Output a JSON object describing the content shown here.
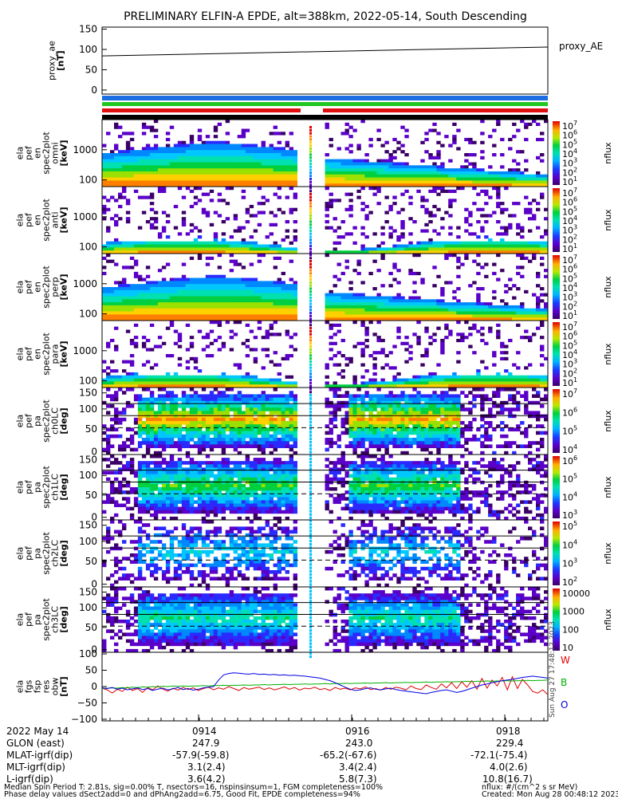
{
  "title": "PRELIMINARY ELFIN-A EPDE, alt=388km, 2022-05-14, South Descending",
  "colors": {
    "bar_blue": "#1b6fe0",
    "bar_green": "#22c722",
    "bar_red": "#e01010",
    "bar_black": "#000000",
    "trace_red": "#e00000",
    "trace_green": "#00b000",
    "trace_blue": "#0000e0"
  },
  "chart_data": [
    {
      "type": "line",
      "id": "proxy_ae",
      "ylabel_lines": [
        "proxy_ae",
        "[nT]"
      ],
      "legend": "proxy_AE",
      "yticks": [
        "150",
        "100",
        "50",
        "0"
      ],
      "ylim": [
        -10,
        155
      ],
      "x": [
        0,
        1
      ],
      "y": [
        84,
        106
      ]
    },
    {
      "type": "heatmap",
      "id": "en-spec-omni",
      "ylabel_lines": [
        "ela",
        "pef",
        "en",
        "spec2plot",
        "omni",
        "[keV]"
      ],
      "yticks": [
        "1000",
        "100"
      ],
      "colorbar_label": "nflux",
      "colorbar_ticks": [
        "10",
        "10",
        "10",
        "10",
        "10",
        "10",
        "10"
      ],
      "colorbar_exps": [
        "7",
        "6",
        "5",
        "4",
        "3",
        "2",
        "1"
      ]
    },
    {
      "type": "heatmap",
      "id": "en-spec-anti",
      "ylabel_lines": [
        "ela",
        "pef",
        "en",
        "spec2plot",
        "anti",
        "[keV]"
      ],
      "yticks": [
        "1000",
        "100"
      ],
      "colorbar_label": "nflux",
      "colorbar_ticks": [
        "10",
        "10",
        "10",
        "10",
        "10",
        "10",
        "10"
      ],
      "colorbar_exps": [
        "7",
        "6",
        "5",
        "4",
        "3",
        "2",
        "1"
      ]
    },
    {
      "type": "heatmap",
      "id": "en-spec-perp",
      "ylabel_lines": [
        "ela",
        "pef",
        "en",
        "spec2plot",
        "perp",
        "[keV]"
      ],
      "yticks": [
        "1000",
        "100"
      ],
      "colorbar_label": "nflux",
      "colorbar_ticks": [
        "10",
        "10",
        "10",
        "10",
        "10",
        "10",
        "10"
      ],
      "colorbar_exps": [
        "7",
        "6",
        "5",
        "4",
        "3",
        "2",
        "1"
      ]
    },
    {
      "type": "heatmap",
      "id": "en-spec-para",
      "ylabel_lines": [
        "ela",
        "pef",
        "en",
        "spec2plot",
        "para",
        "[keV]"
      ],
      "yticks": [
        "1000",
        "100"
      ],
      "colorbar_label": "nflux",
      "colorbar_ticks": [
        "10",
        "10",
        "10",
        "10",
        "10",
        "10",
        "10"
      ],
      "colorbar_exps": [
        "7",
        "6",
        "5",
        "4",
        "3",
        "2",
        "1"
      ]
    },
    {
      "type": "heatmap",
      "id": "pa-ch0",
      "ylabel_lines": [
        "ela",
        "pef",
        "pa",
        "spec2plot",
        "ch0LC",
        "[deg]"
      ],
      "yticks": [
        "150",
        "100",
        "50",
        "0"
      ],
      "colorbar_label": "nflux",
      "colorbar_ticks": [
        "10",
        "10",
        "10",
        "10"
      ],
      "colorbar_exps": [
        "7",
        "6",
        "5",
        "4"
      ]
    },
    {
      "type": "heatmap",
      "id": "pa-ch1",
      "ylabel_lines": [
        "ela",
        "pef",
        "pa",
        "spec2plot",
        "ch1LC",
        "[deg]"
      ],
      "yticks": [
        "150",
        "100",
        "50",
        "0"
      ],
      "colorbar_label": "nflux",
      "colorbar_ticks": [
        "10",
        "10",
        "10",
        "10"
      ],
      "colorbar_exps": [
        "6",
        "5",
        "4",
        "3"
      ]
    },
    {
      "type": "heatmap",
      "id": "pa-ch2",
      "ylabel_lines": [
        "ela",
        "pef",
        "pa",
        "spec2plot",
        "ch2LC",
        "[deg]"
      ],
      "yticks": [
        "150",
        "100",
        "50",
        "0"
      ],
      "colorbar_label": "nflux",
      "colorbar_ticks": [
        "10",
        "10",
        "10",
        "10"
      ],
      "colorbar_exps": [
        "5",
        "4",
        "3",
        "2"
      ]
    },
    {
      "type": "heatmap",
      "id": "pa-ch3",
      "ylabel_lines": [
        "ela",
        "pef",
        "pa",
        "spec2plot",
        "ch3LC",
        "[deg]"
      ],
      "yticks": [
        "150",
        "100",
        "50",
        "0"
      ],
      "colorbar_label": "nflux",
      "colorbar_ticks": [
        "10000",
        "1000",
        "100",
        "10"
      ],
      "colorbar_exps": [
        "",
        "",
        "",
        ""
      ]
    },
    {
      "type": "line",
      "id": "fgs-res",
      "ylabel_lines": [
        "ela",
        "fgs",
        "fsp",
        "res",
        "obw",
        "[nT]"
      ],
      "yticks": [
        "100",
        "50",
        "0",
        "−50",
        "−100"
      ],
      "ylim": [
        -105,
        105
      ],
      "legend": [
        {
          "name": "W",
          "color": "#e00000"
        },
        {
          "name": "B",
          "color": "#00b000"
        },
        {
          "name": "O",
          "color": "#0000e0"
        }
      ],
      "series": [
        {
          "name": "W",
          "values": [
            -5,
            -10,
            -20,
            -8,
            -15,
            -2,
            -12,
            -6,
            -18,
            -3,
            -10,
            2,
            -8,
            -14,
            -5,
            -11,
            -3,
            -9,
            -4,
            -12,
            -6,
            -2,
            -10,
            -4,
            -8,
            0,
            -6,
            -12,
            -3,
            -8,
            -5,
            -2,
            -9,
            -4,
            -10,
            -6,
            -1,
            -8,
            -3,
            -11,
            -5,
            -7,
            -2,
            -9,
            -6,
            -12,
            -3,
            -8,
            -5,
            -10,
            -4,
            -7,
            -1,
            -9,
            -6,
            -11,
            -3,
            -8,
            -2,
            -5,
            -10,
            2,
            -6,
            -9,
            5,
            -3,
            -8,
            8,
            -4,
            12,
            -6,
            15,
            -2,
            18,
            -8,
            25,
            -5,
            20,
            2,
            28,
            -10,
            30,
            -6,
            22,
            5,
            -15,
            -20,
            -10,
            -25
          ]
        },
        {
          "name": "B",
          "values": [
            -6,
            -5,
            -4,
            -5,
            -3,
            -4,
            -2,
            -3,
            -1,
            -2,
            0,
            -1,
            1,
            0,
            2,
            1,
            2,
            1,
            2,
            2,
            3,
            2,
            3,
            3,
            4,
            3,
            4,
            4,
            5,
            4,
            5,
            5,
            6,
            5,
            6,
            6,
            7,
            6,
            7,
            7,
            8,
            7,
            8,
            8,
            9,
            8,
            9,
            9,
            10,
            9,
            10,
            10,
            11,
            10,
            11,
            11,
            12,
            11,
            12,
            12,
            13,
            12,
            13,
            13,
            14,
            13,
            14,
            14,
            15,
            14,
            15,
            15,
            16,
            15,
            16,
            16,
            17,
            16,
            17,
            17,
            18,
            17,
            18,
            18,
            19,
            18,
            19,
            19,
            20
          ]
        },
        {
          "name": "O",
          "values": [
            -4,
            -6,
            -3,
            -8,
            -5,
            -10,
            -7,
            -4,
            -9,
            -6,
            -12,
            -8,
            -5,
            -10,
            -7,
            -3,
            -9,
            -6,
            -11,
            -8,
            -4,
            -2,
            0,
            20,
            36,
            40,
            42,
            41,
            39,
            38,
            40,
            37,
            38,
            36,
            37,
            35,
            36,
            34,
            35,
            33,
            32,
            30,
            28,
            26,
            22,
            18,
            12,
            5,
            -2,
            -8,
            -12,
            -10,
            -6,
            -4,
            -8,
            -10,
            -7,
            -5,
            -9,
            -12,
            -14,
            -16,
            -18,
            -20,
            -22,
            -18,
            -15,
            -12,
            -10,
            -14,
            -18,
            -15,
            -10,
            -5,
            0,
            5,
            8,
            12,
            15,
            18,
            20,
            22,
            25,
            28,
            30,
            32,
            30,
            28,
            26
          ]
        }
      ]
    }
  ],
  "time_axis": {
    "tick_labels": [
      "0914",
      "0916",
      "0918"
    ]
  },
  "ephemeris": {
    "rows": [
      {
        "label": "2022 May 14",
        "values": [
          "0914",
          "0916",
          "0918"
        ]
      },
      {
        "label": "GLON (east)",
        "values": [
          "247.9",
          "243.0",
          "229.4"
        ]
      },
      {
        "label": "MLAT-igrf(dip)",
        "values": [
          "-57.9(-59.8)",
          "-65.2(-67.6)",
          "-72.1(-75.4)"
        ]
      },
      {
        "label": "MLT-igrf(dip)",
        "values": [
          "3.1(2.4)",
          "3.4(2.4)",
          "4.0(2.6)"
        ]
      },
      {
        "label": "L-igrf(dip)",
        "values": [
          "3.6(4.2)",
          "5.8(7.3)",
          "10.8(16.7)"
        ]
      }
    ]
  },
  "footer": {
    "line1_left": "Median Spin Period T: 2.81s, sig=0.00% T, nsectors=16, nspinsinsum=1, FGM completeness=100%",
    "line2_left": "Phase delay values dSect2add=0 and dPhAng2add=6.75, Good Fit, EPDE completeness=94%",
    "line1_right": "nflux: #/(cm^2 s sr MeV)",
    "line2_right": "Created: Mon Aug 28 00:48:12 2023",
    "side_stamp": "Sun Aug 27 17:48:12 2023"
  }
}
